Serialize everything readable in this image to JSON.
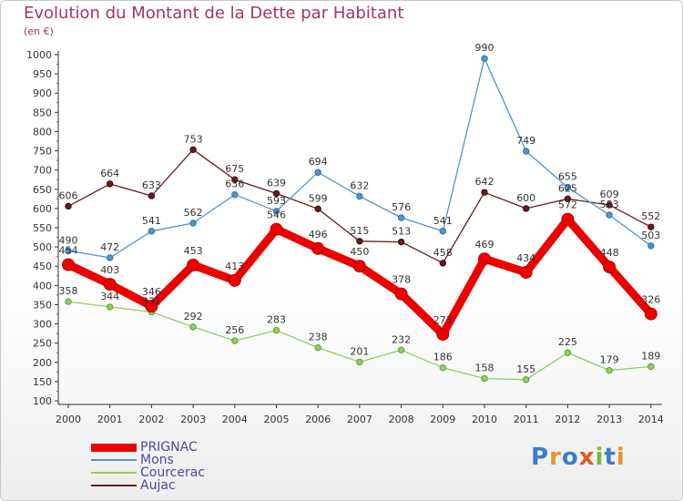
{
  "title": "Evolution du Montant de la Dette par Habitant",
  "subtitle": "(en €)",
  "chart_data": {
    "type": "line",
    "title": "Evolution du Montant de la Dette par Habitant",
    "subtitle": "(en €)",
    "xlabel": "",
    "ylabel": "",
    "x": [
      "2000",
      "2001",
      "2002",
      "2003",
      "2004",
      "2005",
      "2006",
      "2007",
      "2008",
      "2009",
      "2010",
      "2011",
      "2012",
      "2013",
      "2014"
    ],
    "ylim": [
      100,
      1000
    ],
    "yticks": [
      100,
      150,
      200,
      250,
      300,
      350,
      400,
      450,
      500,
      550,
      600,
      650,
      700,
      750,
      800,
      850,
      900,
      950,
      1000
    ],
    "grid": false,
    "legend_position": "bottom-left",
    "series": [
      {
        "name": "PRIGNAC",
        "color": "#ee0000",
        "values": [
          454,
          403,
          346,
          453,
          413,
          546,
          496,
          450,
          378,
          273,
          469,
          434,
          572,
          448,
          326
        ],
        "labels": [
          "454",
          "403",
          "346",
          "453",
          "413",
          "546",
          "496",
          "450",
          "378",
          "273",
          "469",
          "434",
          "572",
          "448",
          "326"
        ]
      },
      {
        "name": "Mons",
        "color": "#4f95d0",
        "values": [
          490,
          472,
          541,
          562,
          636,
          593,
          694,
          632,
          576,
          541,
          990,
          749,
          655,
          583,
          503
        ],
        "labels": [
          "490",
          "472",
          "541",
          "562",
          "636",
          "593",
          "694",
          "632",
          "576",
          "541",
          "990",
          "749",
          "655",
          "583",
          "503"
        ]
      },
      {
        "name": "Courcerac",
        "color": "#8dd160",
        "values": [
          358,
          344,
          331,
          292,
          256,
          283,
          238,
          201,
          232,
          186,
          158,
          155,
          225,
          179,
          189
        ],
        "labels": [
          "358",
          "344",
          "331",
          "292",
          "256",
          "283",
          "238",
          "201",
          "232",
          "186",
          "158",
          "155",
          "225",
          "179",
          "189"
        ]
      },
      {
        "name": "Aujac",
        "color": "#6b1a1a",
        "values": [
          606,
          664,
          633,
          753,
          675,
          639,
          599,
          515,
          513,
          458,
          642,
          600,
          625,
          609,
          552
        ],
        "labels": [
          "606",
          "664",
          "633",
          "753",
          "675",
          "639",
          "599",
          "515",
          "513",
          "458",
          "642",
          "600",
          "625",
          "609",
          "552"
        ]
      }
    ]
  },
  "logo": {
    "text": "Proxiti",
    "letters": [
      "P",
      "r",
      "o",
      "x",
      "i",
      "t",
      "i"
    ],
    "colors": [
      "#3a7fc9",
      "#e8922e",
      "#3a7fc9",
      "#e05a1e",
      "#7ab83a",
      "#3a7fc9",
      "#e8922e"
    ]
  }
}
